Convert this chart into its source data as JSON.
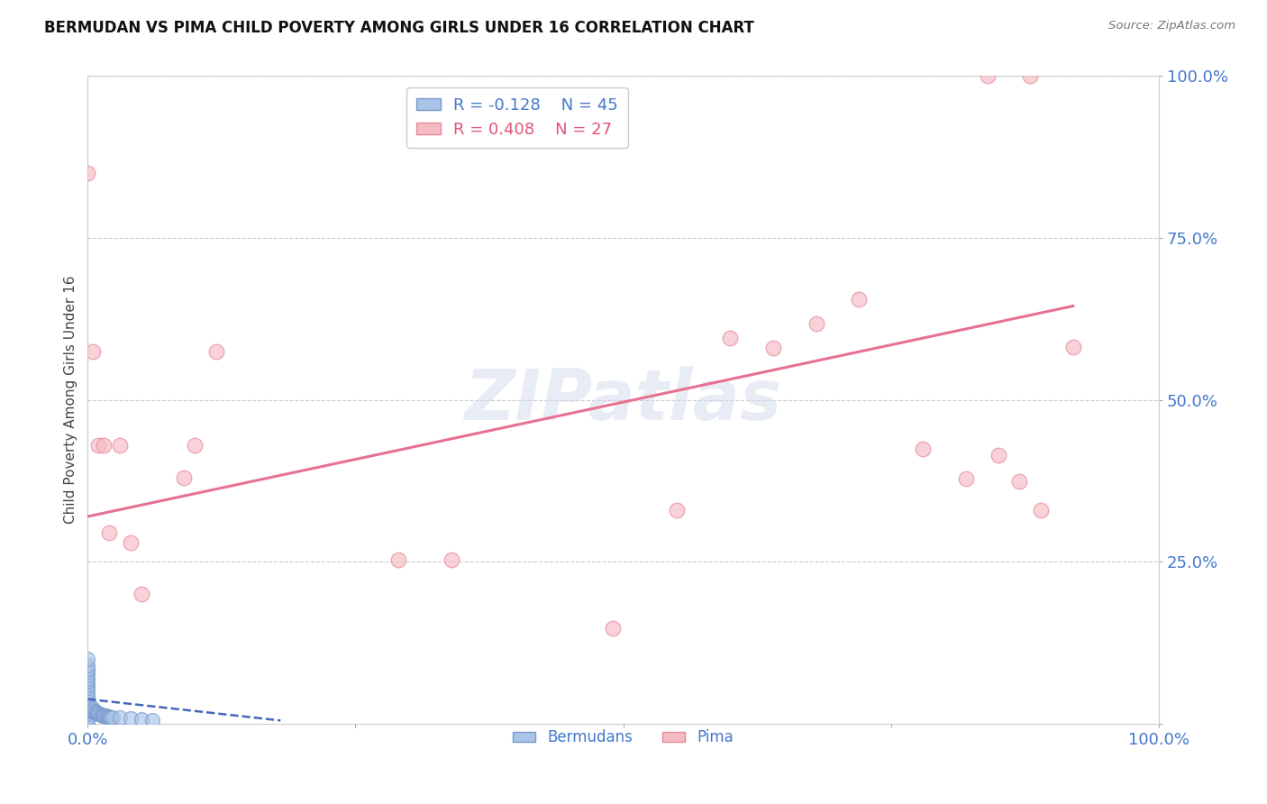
{
  "title": "BERMUDAN VS PIMA CHILD POVERTY AMONG GIRLS UNDER 16 CORRELATION CHART",
  "source": "Source: ZipAtlas.com",
  "ylabel": "Child Poverty Among Girls Under 16",
  "watermark": "ZIPatlas",
  "bermudans_color_edge": "#7799cc",
  "bermudans_color_fill": "#aac4e8",
  "pima_color_edge": "#e88899",
  "pima_color_fill": "#f5bbc4",
  "blue_line_color": "#4466bb",
  "pink_line_color": "#e87090",
  "legend_R_bermudans": "R = -0.128",
  "legend_N_bermudans": "N = 45",
  "legend_R_pima": "R = 0.408",
  "legend_N_pima": "N = 27",
  "tick_color": "#4477cc",
  "grid_color": "#cccccc",
  "xlim": [
    0.0,
    1.0
  ],
  "ylim": [
    0.0,
    1.0
  ],
  "marker_size": 130,
  "alpha": 0.65,
  "berm_x": [
    0.0,
    0.0,
    0.0,
    0.0,
    0.0,
    0.0,
    0.0,
    0.0,
    0.0,
    0.0,
    0.0,
    0.0,
    0.0,
    0.0,
    0.0,
    0.0,
    0.0,
    0.0,
    0.0,
    0.0,
    0.003,
    0.004,
    0.005,
    0.006,
    0.007,
    0.008,
    0.009,
    0.01,
    0.011,
    0.012,
    0.013,
    0.014,
    0.015,
    0.016,
    0.017,
    0.018,
    0.019,
    0.02,
    0.021,
    0.022,
    0.023,
    0.03,
    0.04,
    0.05,
    0.06
  ],
  "berm_y": [
    0.0,
    0.005,
    0.01,
    0.015,
    0.02,
    0.025,
    0.03,
    0.035,
    0.04,
    0.045,
    0.05,
    0.055,
    0.06,
    0.065,
    0.07,
    0.075,
    0.08,
    0.085,
    0.09,
    0.1,
    0.02,
    0.025,
    0.022,
    0.02,
    0.018,
    0.018,
    0.016,
    0.015,
    0.015,
    0.014,
    0.014,
    0.013,
    0.013,
    0.012,
    0.012,
    0.011,
    0.011,
    0.01,
    0.01,
    0.01,
    0.009,
    0.009,
    0.008,
    0.007,
    0.006
  ],
  "pima_x": [
    0.0,
    0.005,
    0.01,
    0.015,
    0.02,
    0.03,
    0.04,
    0.05,
    0.09,
    0.1,
    0.12,
    0.49,
    0.55,
    0.6,
    0.64,
    0.68,
    0.72,
    0.78,
    0.82,
    0.85,
    0.87,
    0.89,
    0.92,
    0.29,
    0.34,
    0.84,
    0.88
  ],
  "pima_y": [
    0.85,
    0.575,
    0.43,
    0.43,
    0.295,
    0.43,
    0.28,
    0.2,
    0.38,
    0.43,
    0.575,
    0.148,
    0.33,
    0.595,
    0.58,
    0.618,
    0.655,
    0.425,
    0.378,
    0.415,
    0.375,
    0.33,
    0.582,
    0.253,
    0.253,
    1.0,
    1.0
  ],
  "pima_line_x": [
    0.0,
    0.92
  ],
  "pima_line_y": [
    0.32,
    0.645
  ],
  "berm_line_x": [
    0.0,
    0.18
  ],
  "berm_line_y": [
    0.038,
    0.005
  ]
}
